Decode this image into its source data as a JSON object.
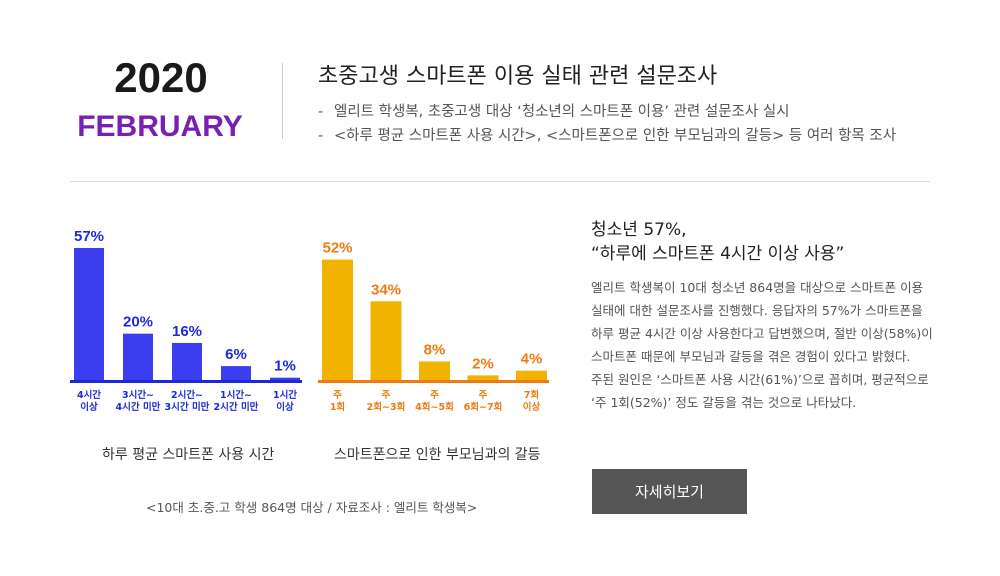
{
  "header": {
    "year": "2020",
    "month": "FEBRUARY",
    "title": "초중고생 스마트폰 이용 실태 관련 설문조사",
    "bullets": [
      "엘리트 학생복, 초중고생 대상 ‘청소년의 스마트폰 이용’ 관련 설문조사 실시",
      "<하루 평균 스마트폰 사용 시간>, <스마트폰으로 인한 부모님과의 갈등> 등 여러 항목 조사"
    ],
    "bullet_marker": "-"
  },
  "chart_data": [
    {
      "type": "bar",
      "title": "하루 평균 스마트폰 사용 시간",
      "categories": [
        [
          "4시간",
          "이상"
        ],
        [
          "3시간~",
          "4시간 미만"
        ],
        [
          "2시간~",
          "3시간 미만"
        ],
        [
          "1시간~",
          "2시간 미만"
        ],
        [
          "1시간",
          "이상"
        ]
      ],
      "values": [
        57,
        20,
        16,
        6,
        1
      ],
      "value_labels": [
        "57%",
        "20%",
        "16%",
        "6%",
        "1%"
      ],
      "ylim": [
        0,
        60
      ],
      "color": "#3d3df0",
      "label_color": "#1c2ad6",
      "axis_color": "#1c2ad6",
      "grid": false
    },
    {
      "type": "bar",
      "title": "스마트폰으로 인한 부모님과의 갈등",
      "categories": [
        [
          "주",
          "1회"
        ],
        [
          "주",
          "2회~3회"
        ],
        [
          "주",
          "4회~5회"
        ],
        [
          "주",
          "6회~7회"
        ],
        [
          "7회",
          "이상"
        ]
      ],
      "values": [
        52,
        34,
        8,
        2,
        4
      ],
      "value_labels": [
        "52%",
        "34%",
        "8%",
        "2%",
        "4%"
      ],
      "ylim": [
        0,
        60
      ],
      "color": "#f2b200",
      "label_color": "#f07a10",
      "axis_color": "#f07a10",
      "grid": false
    }
  ],
  "source": "<10대 초.중.고 학생 864명 대상 / 자료조사 : 엘리트 학생복>",
  "aside": {
    "headline": [
      "청소년 57%,",
      "“하루에 스마트폰 4시간 이상 사용”"
    ],
    "body": [
      "엘리트 학생복이 10대 청소년 864명을 대상으로 스마트폰 이용",
      "실태에 대한 설문조사를 진행했다. 응답자의 57%가 스마트폰을",
      "하루 평균 4시간 이상 사용한다고 답변했으며, 절반 이상(58%)이",
      "스마트폰 때문에 부모님과 갈등을 겪은 경험이 있다고 밝혔다.",
      "주된 원인은 ‘스마트폰 사용 시간(61%)’으로 꼽히며, 평균적으로",
      "‘주 1회(52%)’ 정도 갈등을 겪는 것으로 나타났다."
    ],
    "button_label": "자세히보기"
  }
}
